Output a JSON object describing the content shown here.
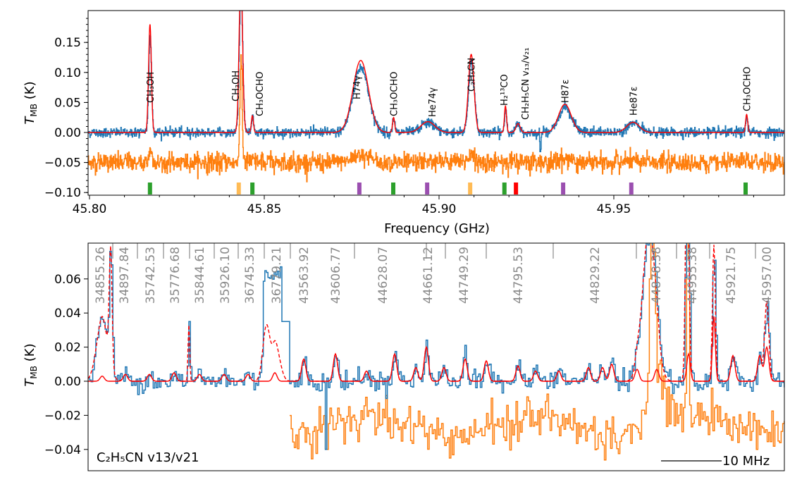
{
  "chart_data": [
    {
      "type": "line",
      "panel": "top",
      "xlabel": "Frequency (GHz)",
      "ylabel": "T_MB (K)",
      "xlim": [
        45.8,
        45.999
      ],
      "ylim": [
        -0.1,
        0.2
      ],
      "xticks": [
        "45.80",
        "45.85",
        "45.90",
        "45.95"
      ],
      "yticks": [
        "0.15",
        "0.10",
        "0.05",
        "0.00",
        "−0.05",
        "−0.10"
      ],
      "series_colors": {
        "observed": "#1f77b4",
        "model": "#ff0000",
        "residual": "#ff7f0e"
      },
      "residual_offset": -0.05,
      "lines": [
        {
          "label": "CH₃OH",
          "freq": 45.8173,
          "amp": 0.18,
          "sigma": 0.0004
        },
        {
          "label": "CH₃OH",
          "freq": 45.8433,
          "amp": 0.26,
          "sigma": 0.0005
        },
        {
          "label": "CH₃OCHO",
          "freq": 45.8466,
          "amp": 0.028,
          "sigma": 0.0003
        },
        {
          "label": "H74γ",
          "freq": 45.8776,
          "amp": 0.12,
          "sigma": 0.0022
        },
        {
          "label": "CH₃OCHO",
          "freq": 45.887,
          "amp": 0.025,
          "sigma": 0.0003
        },
        {
          "label": "He74γ",
          "freq": 45.8968,
          "amp": 0.018,
          "sigma": 0.002
        },
        {
          "label": "C₂H₅CN",
          "freq": 45.9092,
          "amp": 0.13,
          "sigma": 0.0008
        },
        {
          "label": "H₂¹³CO",
          "freq": 45.919,
          "amp": 0.044,
          "sigma": 0.0003
        },
        {
          "label": "CH₂H₅CN v₁₃/v₂₁",
          "freq": 45.9226,
          "amp": 0.015,
          "sigma": 0.0006
        },
        {
          "label": "H87ε",
          "freq": 45.936,
          "amp": 0.047,
          "sigma": 0.0018
        },
        {
          "label": "He87ε",
          "freq": 45.9555,
          "amp": 0.017,
          "sigma": 0.0018
        },
        {
          "label": "CH₃OCHO",
          "freq": 45.988,
          "amp": 0.03,
          "sigma": 0.0003
        }
      ],
      "markers": [
        {
          "freq": 45.8173,
          "color": "#2ca02c"
        },
        {
          "freq": 45.8427,
          "color": "#ffbb55"
        },
        {
          "freq": 45.8466,
          "color": "#2ca02c"
        },
        {
          "freq": 45.8772,
          "color": "#9b4fb0"
        },
        {
          "freq": 45.8869,
          "color": "#2ca02c"
        },
        {
          "freq": 45.8966,
          "color": "#9b4fb0"
        },
        {
          "freq": 45.9089,
          "color": "#ffbb55"
        },
        {
          "freq": 45.9187,
          "color": "#2ca02c"
        },
        {
          "freq": 45.922,
          "color": "#ff0000"
        },
        {
          "freq": 45.9355,
          "color": "#9b4fb0"
        },
        {
          "freq": 45.955,
          "color": "#9b4fb0"
        },
        {
          "freq": 45.9877,
          "color": "#2ca02c"
        }
      ]
    },
    {
      "type": "line",
      "panel": "bottom",
      "ylabel": "T_MB (K)",
      "ylim": [
        -0.0525,
        0.081
      ],
      "yticks": [
        "0.06",
        "0.04",
        "0.02",
        "0.00",
        "−0.02",
        "−0.04"
      ],
      "segment_labels_mhz": [
        "34855.26",
        "34897.84",
        "35742.53",
        "35776.68",
        "35844.61",
        "35926.10",
        "36745.33",
        "36779.21",
        "43563.92",
        "43606.77",
        "44628.07",
        "44661.12",
        "44749.29",
        "44795.53",
        "44829.22",
        "44878.38",
        "44955.38",
        "45921.75",
        "45957.00"
      ],
      "annotation": "C₂H₅CN v13/v21",
      "scale_bar_label": "10 MHz",
      "series_colors": {
        "observed": "#1f77b4",
        "model": "#ff0000",
        "model_total_dashed": "#ff0000",
        "residual": "#ff7f0e"
      }
    }
  ]
}
